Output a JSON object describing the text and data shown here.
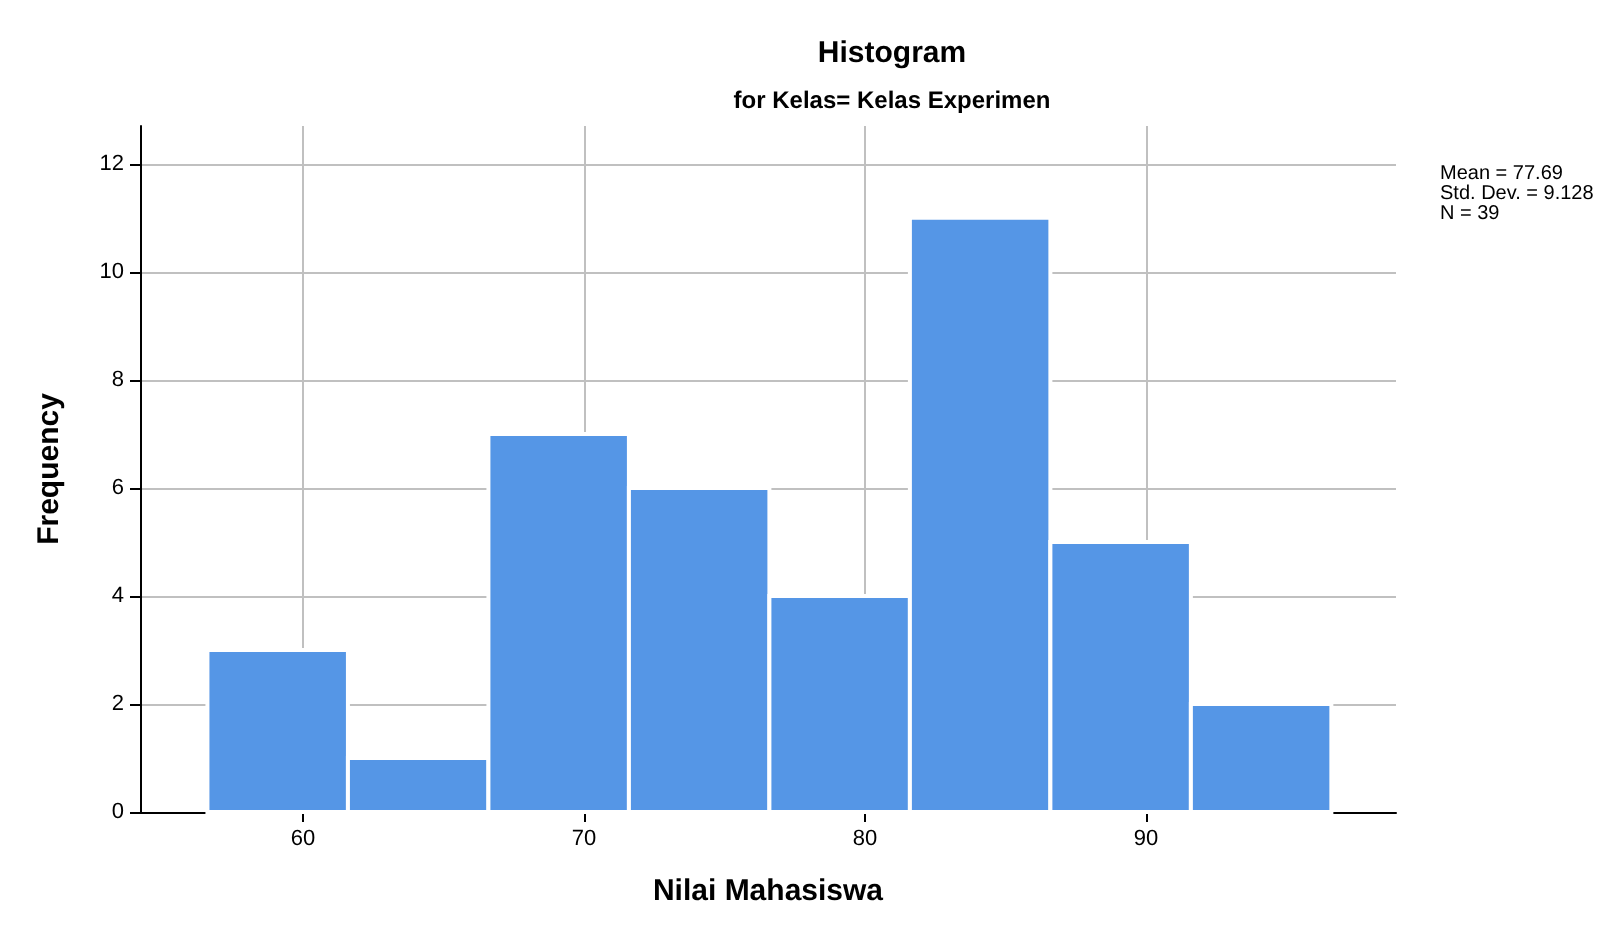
{
  "chart_data": {
    "type": "histogram",
    "title": "Histogram",
    "subtitle": "for Kelas= Kelas Experimen",
    "xlabel": "Nilai Mahasiswa",
    "ylabel": "Frequency",
    "bins": [
      56.6,
      61.6,
      66.6,
      71.6,
      76.6,
      81.6,
      86.6,
      91.6,
      96.6
    ],
    "values": [
      3,
      1,
      7,
      6,
      4,
      11,
      5,
      2
    ],
    "color": "#5596e6",
    "xlim": [
      54.2,
      98.9
    ],
    "xticks": [
      60,
      70,
      80,
      90
    ],
    "ylim": [
      0,
      12.7
    ],
    "yticks": [
      0,
      2,
      4,
      6,
      8,
      10,
      12
    ],
    "grid": true,
    "annotations": [
      "Mean = 77.69",
      "Std. Dev. = 9.128",
      "N = 39"
    ]
  }
}
